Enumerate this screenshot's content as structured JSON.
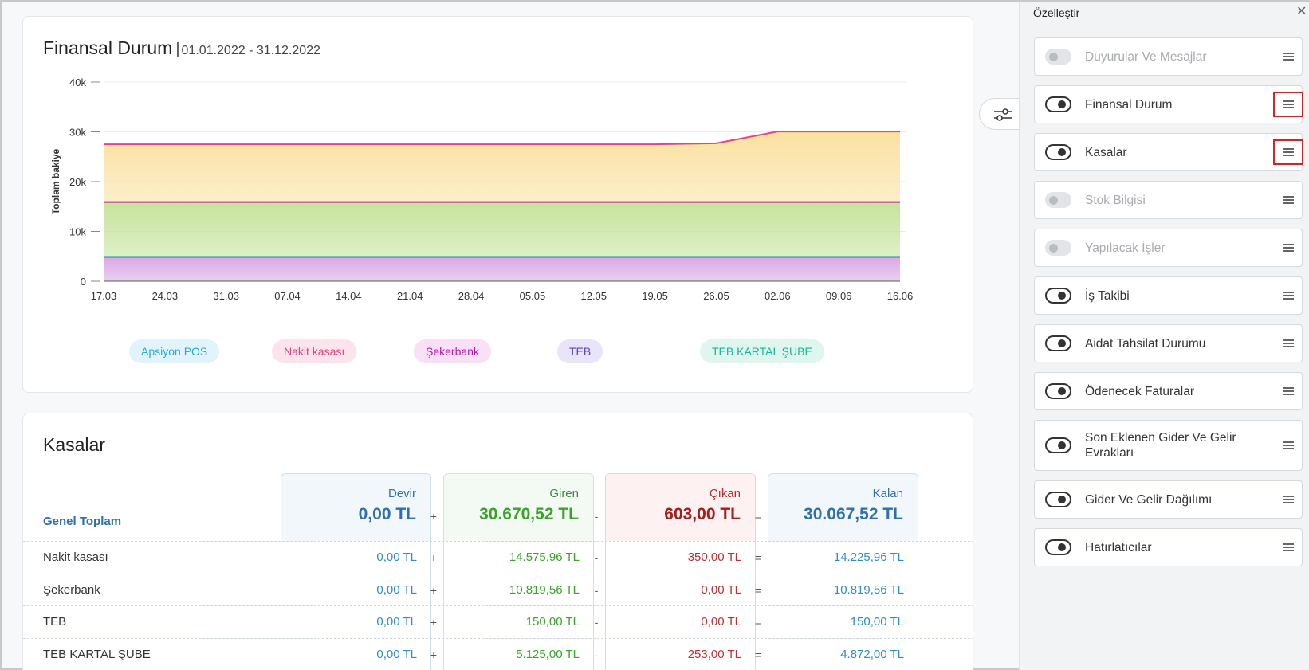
{
  "finansal": {
    "title": "Finansal Durum",
    "separator": "|",
    "date_range": "01.01.2022 - 31.12.2022",
    "legend": [
      {
        "label": "Apsiyon POS",
        "color": "#29a9d6",
        "bg": "#e2f4fb"
      },
      {
        "label": "Nakit kasası",
        "color": "#e8407a",
        "bg": "#fde4ec"
      },
      {
        "label": "Şekerbank",
        "color": "#b818b8",
        "bg": "#f9e0f6"
      },
      {
        "label": "TEB",
        "color": "#5b43c7",
        "bg": "#e8e4f9"
      },
      {
        "label": "TEB KARTAL ŞUBE",
        "color": "#16b89a",
        "bg": "#dff6ef"
      }
    ]
  },
  "chart_data": {
    "type": "area",
    "stacked": true,
    "ylabel": "Toplam bakiye",
    "xlabel": "",
    "ylim": [
      0,
      40000
    ],
    "yticks": [
      0,
      10000,
      20000,
      30000,
      40000
    ],
    "ytick_labels": [
      "0",
      "10k",
      "20k",
      "30k",
      "40k"
    ],
    "x": [
      "17.03",
      "24.03",
      "31.03",
      "07.04",
      "14.04",
      "21.04",
      "28.04",
      "05.05",
      "12.05",
      "19.05",
      "26.05",
      "02.06",
      "09.06",
      "16.06"
    ],
    "grid": true,
    "series": [
      {
        "name": "TEB KARTAL ŞUBE",
        "color": "#d9a8e6",
        "line": "#0f9a8a",
        "total": [
          4872,
          4872,
          4872,
          4872,
          4872,
          4872,
          4872,
          4872,
          4872,
          4872,
          4872,
          4872,
          4872,
          4872
        ]
      },
      {
        "name": "TEB",
        "color": "#c5e39a",
        "line": "#cc1a9c",
        "total": [
          15900,
          15900,
          15900,
          15900,
          15900,
          15900,
          15900,
          15900,
          15900,
          15900,
          15900,
          15900,
          15900,
          15900
        ]
      },
      {
        "name": "Nakit kasası",
        "color": "#fbe1a0",
        "line": "#e8408a",
        "total": [
          27500,
          27500,
          27500,
          27500,
          27500,
          27500,
          27500,
          27500,
          27500,
          27500,
          27700,
          30067,
          30067,
          30067
        ]
      }
    ]
  },
  "kasalar": {
    "title": "Kasalar",
    "genel_toplam": "Genel Toplam",
    "columns": [
      {
        "label": "Devir",
        "total": "0,00 TL",
        "color": "#2f6fae",
        "valcolor": "#2f6fae",
        "bg": "#f2f7fb",
        "border": "#cfe0ee"
      },
      {
        "label": "Giren",
        "total": "30.670,52 TL",
        "color": "#3c8a3c",
        "valcolor": "#3aa32a",
        "bg": "#f2faf3",
        "border": "#cde9d2"
      },
      {
        "label": "Çıkan",
        "total": "603,00 TL",
        "color": "#c02828",
        "valcolor": "#a51c1c",
        "bg": "#fdf1f2",
        "border": "#f1cfd3"
      },
      {
        "label": "Kalan",
        "total": "30.067,52 TL",
        "color": "#2f6fae",
        "valcolor": "#2f6fae",
        "bg": "#f2f7fb",
        "border": "#cfe0ee"
      }
    ],
    "ops": [
      "+",
      "-",
      "="
    ],
    "rows": [
      {
        "name": "Nakit kasası",
        "devir": "0,00 TL",
        "giren": "14.575,96 TL",
        "cikan": "350,00 TL",
        "kalan": "14.225,96 TL"
      },
      {
        "name": "Şekerbank",
        "devir": "0,00 TL",
        "giren": "10.819,56 TL",
        "cikan": "0,00 TL",
        "kalan": "10.819,56 TL"
      },
      {
        "name": "TEB",
        "devir": "0,00 TL",
        "giren": "150,00 TL",
        "cikan": "0,00 TL",
        "kalan": "150,00 TL"
      },
      {
        "name": "TEB KARTAL ŞUBE",
        "devir": "0,00 TL",
        "giren": "5.125,00 TL",
        "cikan": "253,00 TL",
        "kalan": "4.872,00 TL"
      }
    ],
    "cell_colors": {
      "devir": "#2f8ad1",
      "giren": "#3aa32a",
      "cikan": "#c03030",
      "kalan": "#2f8ad1"
    }
  },
  "panel": {
    "title": "Özelleştir",
    "close_icon": "close-icon",
    "items": [
      {
        "label": "Duyurular Ve Mesajlar",
        "enabled": false
      },
      {
        "label": "Finansal Durum",
        "enabled": true,
        "highlighted": true
      },
      {
        "label": "Kasalar",
        "enabled": true,
        "highlighted": true
      },
      {
        "label": "Stok Bilgisi",
        "enabled": false
      },
      {
        "label": "Yapılacak İşler",
        "enabled": false
      },
      {
        "label": "İş Takibi",
        "enabled": true
      },
      {
        "label": "Aidat Tahsilat Durumu",
        "enabled": true
      },
      {
        "label": "Ödenecek Faturalar",
        "enabled": true
      },
      {
        "label": "Son Eklenen Gider Ve Gelir Evrakları",
        "enabled": true
      },
      {
        "label": "Gider Ve Gelir Dağılımı",
        "enabled": true
      },
      {
        "label": "Hatırlatıcılar",
        "enabled": true
      }
    ]
  }
}
